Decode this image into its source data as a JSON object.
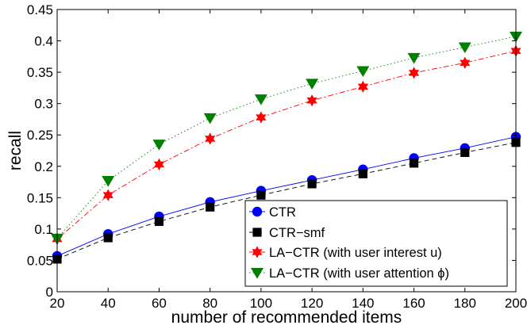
{
  "chart_data": {
    "type": "line",
    "title": "",
    "xlabel": "number of recommended items",
    "ylabel": "recall",
    "x": [
      20,
      40,
      60,
      80,
      100,
      120,
      140,
      160,
      180,
      200
    ],
    "xlim": [
      20,
      200
    ],
    "ylim": [
      0,
      0.45
    ],
    "xticks": [
      "20",
      "40",
      "60",
      "80",
      "100",
      "120",
      "140",
      "160",
      "180",
      "200"
    ],
    "yticks": [
      "0",
      "0.05",
      "0.1",
      "0.15",
      "0.2",
      "0.25",
      "0.3",
      "0.35",
      "0.4",
      "0.45"
    ],
    "ytick_values": [
      0,
      0.05,
      0.1,
      0.15,
      0.2,
      0.25,
      0.3,
      0.35,
      0.4,
      0.45
    ],
    "grid": false,
    "legend_position": "bottom-right",
    "series": [
      {
        "name": "CTR",
        "marker": "circle",
        "line": "solid",
        "color": "#0000ff",
        "values": [
          0.057,
          0.092,
          0.12,
          0.143,
          0.161,
          0.178,
          0.195,
          0.213,
          0.229,
          0.247
        ]
      },
      {
        "name": "CTR−smf",
        "marker": "square",
        "line": "dashed",
        "color": "#000000",
        "values": [
          0.052,
          0.086,
          0.112,
          0.135,
          0.154,
          0.172,
          0.188,
          0.205,
          0.222,
          0.238
        ]
      },
      {
        "name": "LA−CTR (with user interest u)",
        "marker": "hexagram",
        "line": "dashdot",
        "color": "#ff0000",
        "values": [
          0.084,
          0.154,
          0.203,
          0.244,
          0.278,
          0.305,
          0.327,
          0.349,
          0.365,
          0.384
        ]
      },
      {
        "name": "LA−CTR (with user attention ϕ)",
        "marker": "triangle-down",
        "line": "dotted",
        "color": "#008000",
        "values": [
          0.085,
          0.177,
          0.235,
          0.277,
          0.307,
          0.332,
          0.352,
          0.373,
          0.39,
          0.407
        ]
      }
    ]
  }
}
